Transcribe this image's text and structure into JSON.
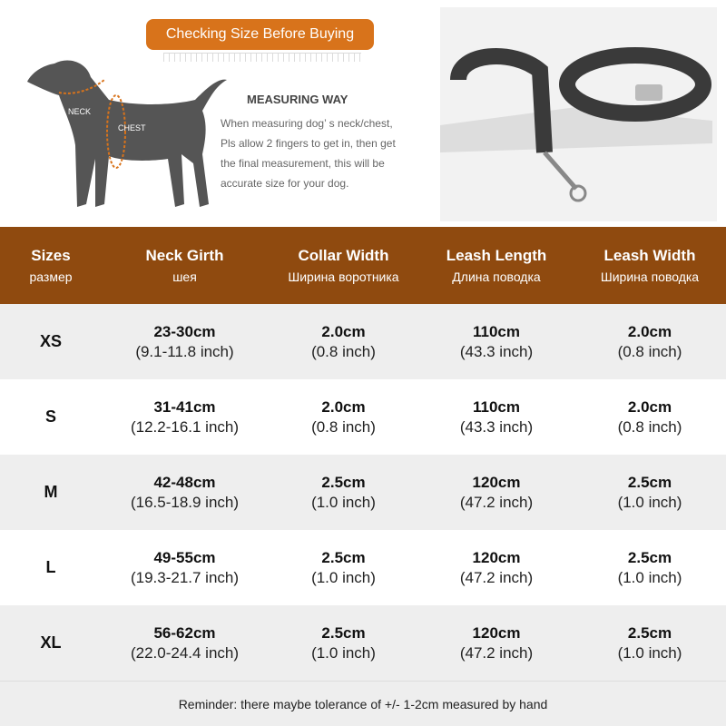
{
  "banner": "Checking Size Before Buying",
  "measuring": {
    "title": "MEASURING WAY",
    "lines": [
      "When measuring dog’ s neck/chest,",
      "Pls allow 2 fingers to get in, then get",
      "the final measurement, this will be",
      "accurate size for your dog."
    ],
    "neck_label": "NECK",
    "chest_label": "CHEST"
  },
  "colors": {
    "header": "#8f4a0f",
    "banner": "#d8731b",
    "row_alt": "#eeeeee"
  },
  "table": {
    "headers": [
      {
        "en": "Sizes",
        "ru": "размер"
      },
      {
        "en": "Neck Girth",
        "ru": "шея"
      },
      {
        "en": "Collar Width",
        "ru": "Ширина воротника"
      },
      {
        "en": "Leash Length",
        "ru": "Длина поводка"
      },
      {
        "en": "Leash Width",
        "ru": "Ширина поводка"
      }
    ],
    "rows": [
      {
        "size": "XS",
        "neck": [
          "23-30cm",
          "(9.1-11.8 inch)"
        ],
        "collar": [
          "2.0cm",
          "(0.8 inch)"
        ],
        "length": [
          "110cm",
          "(43.3 inch)"
        ],
        "width": [
          "2.0cm",
          "(0.8 inch)"
        ]
      },
      {
        "size": "S",
        "neck": [
          "31-41cm",
          "(12.2-16.1 inch)"
        ],
        "collar": [
          "2.0cm",
          "(0.8 inch)"
        ],
        "length": [
          "110cm",
          "(43.3 inch)"
        ],
        "width": [
          "2.0cm",
          "(0.8 inch)"
        ]
      },
      {
        "size": "M",
        "neck": [
          "42-48cm",
          "(16.5-18.9 inch)"
        ],
        "collar": [
          "2.5cm",
          "(1.0 inch)"
        ],
        "length": [
          "120cm",
          "(47.2 inch)"
        ],
        "width": [
          "2.5cm",
          "(1.0 inch)"
        ]
      },
      {
        "size": "L",
        "neck": [
          "49-55cm",
          "(19.3-21.7 inch)"
        ],
        "collar": [
          "2.5cm",
          "(1.0 inch)"
        ],
        "length": [
          "120cm",
          "(47.2 inch)"
        ],
        "width": [
          "2.5cm",
          "(1.0 inch)"
        ]
      },
      {
        "size": "XL",
        "neck": [
          "56-62cm",
          "(22.0-24.4 inch)"
        ],
        "collar": [
          "2.5cm",
          "(1.0 inch)"
        ],
        "length": [
          "120cm",
          "(47.2 inch)"
        ],
        "width": [
          "2.5cm",
          "(1.0 inch)"
        ]
      }
    ]
  },
  "footer": "Reminder: there maybe tolerance of +/- 1-2cm measured by hand"
}
